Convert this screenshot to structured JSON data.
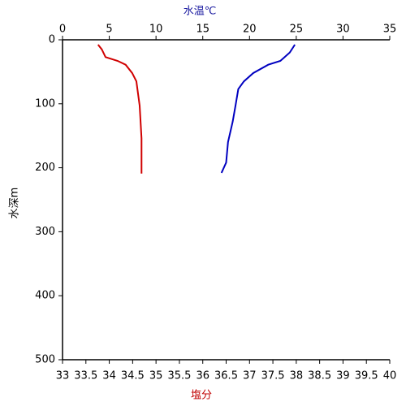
{
  "chart_data": {
    "type": "line",
    "ylabel": "水深m",
    "xlabel": "塩分",
    "x2label": "水温℃",
    "ylim": [
      0,
      500
    ],
    "yticks": [
      0,
      100,
      200,
      300,
      400,
      500
    ],
    "y_inverted": true,
    "xlim": [
      33,
      40
    ],
    "xticks": [
      33,
      33.5,
      34,
      34.5,
      35,
      35.5,
      36,
      36.5,
      37,
      37.5,
      38,
      38.5,
      39,
      39.5,
      40
    ],
    "x2lim": [
      0,
      35
    ],
    "x2ticks": [
      0,
      5,
      10,
      15,
      20,
      25,
      30,
      35
    ],
    "series": [
      {
        "color": "#d00000",
        "axis": "x",
        "x": [
          33.76,
          33.84,
          33.92,
          34.18,
          34.35,
          34.49,
          34.58,
          34.65,
          34.69,
          34.69
        ],
        "values": [
          7.6,
          15,
          27,
          33,
          39,
          52,
          65,
          103,
          154,
          209
        ]
      },
      {
        "color": "#0000c0",
        "axis": "x2",
        "x": [
          24.85,
          24.3,
          23.3,
          22.0,
          20.4,
          19.4,
          18.8,
          18.5,
          18.2,
          17.7,
          17.5,
          17.0
        ],
        "values": [
          7.6,
          20,
          33,
          39,
          52,
          65,
          77,
          103,
          128,
          160,
          192,
          208
        ]
      }
    ]
  }
}
